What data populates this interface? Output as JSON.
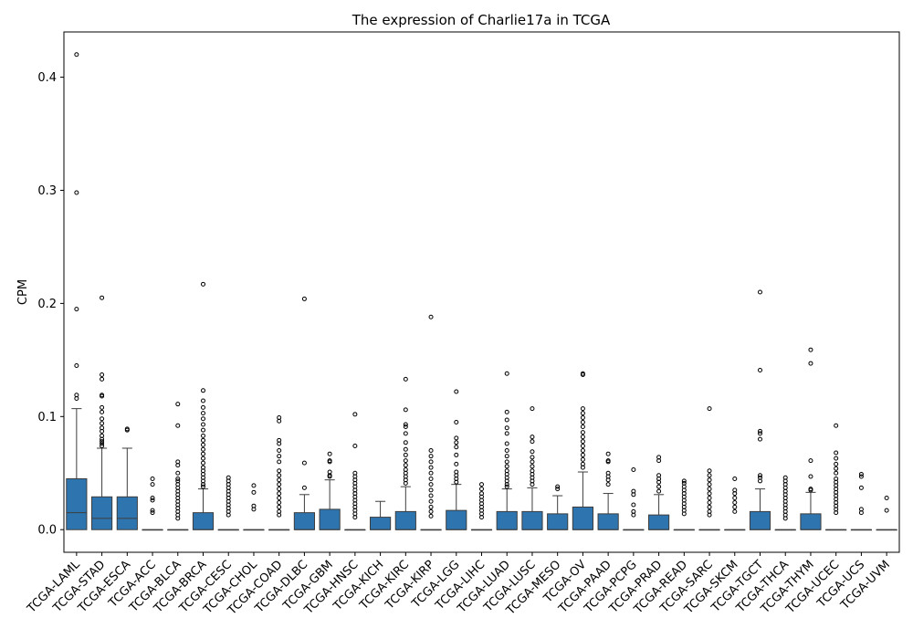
{
  "chart_data": {
    "type": "box",
    "title": "The expression of Charlie17a in TCGA",
    "xlabel": "",
    "ylabel": "CPM",
    "ylim": [
      -0.02,
      0.44
    ],
    "yticks": [
      0.0,
      0.1,
      0.2,
      0.3,
      0.4
    ],
    "ytick_labels": [
      "0.0",
      "0.1",
      "0.2",
      "0.3",
      "0.4"
    ],
    "grid": false,
    "box_color": "#2e75b0",
    "categories": [
      "TCGA-LAML",
      "TCGA-STAD",
      "TCGA-ESCA",
      "TCGA-ACC",
      "TCGA-BLCA",
      "TCGA-BRCA",
      "TCGA-CESC",
      "TCGA-CHOL",
      "TCGA-COAD",
      "TCGA-DLBC",
      "TCGA-GBM",
      "TCGA-HNSC",
      "TCGA-KICH",
      "TCGA-KIRC",
      "TCGA-KIRP",
      "TCGA-LGG",
      "TCGA-LIHC",
      "TCGA-LUAD",
      "TCGA-LUSC",
      "TCGA-MESO",
      "TCGA-OV",
      "TCGA-PAAD",
      "TCGA-PCPG",
      "TCGA-PRAD",
      "TCGA-READ",
      "TCGA-SARC",
      "TCGA-SKCM",
      "TCGA-TGCT",
      "TCGA-THCA",
      "TCGA-THYM",
      "TCGA-UCEC",
      "TCGA-UCS",
      "TCGA-UVM"
    ],
    "boxes": [
      {
        "q1": 0,
        "median": 0.015,
        "q3": 0.045,
        "whisker_low": 0,
        "whisker_high": 0.107,
        "outliers": [
          0.42,
          0.298,
          0.195,
          0.145,
          0.119,
          0.116
        ]
      },
      {
        "q1": 0,
        "median": 0.01,
        "q3": 0.029,
        "whisker_low": 0,
        "whisker_high": 0.072,
        "outliers": [
          0.205,
          0.137,
          0.133,
          0.119,
          0.118,
          0.108,
          0.104,
          0.098,
          0.094,
          0.09,
          0.087,
          0.083,
          0.08,
          0.078,
          0.076,
          0.074
        ]
      },
      {
        "q1": 0,
        "median": 0.01,
        "q3": 0.029,
        "whisker_low": 0,
        "whisker_high": 0.072,
        "outliers": [
          0.089,
          0.088
        ]
      },
      {
        "q1": 0,
        "median": 0,
        "q3": 0,
        "whisker_low": 0,
        "whisker_high": 0,
        "outliers": [
          0.045,
          0.04,
          0.028,
          0.026,
          0.017,
          0.015
        ]
      },
      {
        "q1": 0,
        "median": 0,
        "q3": 0,
        "whisker_low": 0,
        "whisker_high": 0,
        "outliers": [
          0.111,
          0.092,
          0.06,
          0.057,
          0.05,
          0.045,
          0.043,
          0.04,
          0.037,
          0.034,
          0.031,
          0.028,
          0.025,
          0.022,
          0.019,
          0.016,
          0.013,
          0.01
        ]
      },
      {
        "q1": 0,
        "median": 0,
        "q3": 0.015,
        "whisker_low": 0,
        "whisker_high": 0.036,
        "outliers": [
          0.217,
          0.123,
          0.114,
          0.108,
          0.103,
          0.098,
          0.093,
          0.088,
          0.083,
          0.079,
          0.075,
          0.071,
          0.067,
          0.063,
          0.059,
          0.055,
          0.052,
          0.049,
          0.046,
          0.043,
          0.04,
          0.038
        ]
      },
      {
        "q1": 0,
        "median": 0,
        "q3": 0,
        "whisker_low": 0,
        "whisker_high": 0,
        "outliers": [
          0.046,
          0.043,
          0.04,
          0.037,
          0.034,
          0.031,
          0.028,
          0.025,
          0.022,
          0.019,
          0.016,
          0.013
        ]
      },
      {
        "q1": 0,
        "median": 0,
        "q3": 0,
        "whisker_low": 0,
        "whisker_high": 0,
        "outliers": [
          0.039,
          0.033,
          0.021,
          0.018
        ]
      },
      {
        "q1": 0,
        "median": 0,
        "q3": 0,
        "whisker_low": 0,
        "whisker_high": 0,
        "outliers": [
          0.099,
          0.096,
          0.079,
          0.076,
          0.07,
          0.065,
          0.06,
          0.052,
          0.048,
          0.044,
          0.04,
          0.036,
          0.032,
          0.028,
          0.024,
          0.02,
          0.016,
          0.013
        ]
      },
      {
        "q1": 0,
        "median": 0,
        "q3": 0.015,
        "whisker_low": 0,
        "whisker_high": 0.031,
        "outliers": [
          0.204,
          0.059,
          0.037
        ]
      },
      {
        "q1": 0,
        "median": 0,
        "q3": 0.018,
        "whisker_low": 0,
        "whisker_high": 0.044,
        "outliers": [
          0.067,
          0.061,
          0.06,
          0.051,
          0.048,
          0.047
        ]
      },
      {
        "q1": 0,
        "median": 0,
        "q3": 0,
        "whisker_low": 0,
        "whisker_high": 0,
        "outliers": [
          0.102,
          0.074,
          0.05,
          0.047,
          0.044,
          0.041,
          0.038,
          0.035,
          0.032,
          0.029,
          0.026,
          0.023,
          0.02,
          0.017,
          0.014,
          0.011
        ]
      },
      {
        "q1": 0,
        "median": 0,
        "q3": 0.011,
        "whisker_low": 0,
        "whisker_high": 0.025,
        "outliers": []
      },
      {
        "q1": 0,
        "median": 0,
        "q3": 0.016,
        "whisker_low": 0,
        "whisker_high": 0.038,
        "outliers": [
          0.133,
          0.106,
          0.093,
          0.091,
          0.085,
          0.077,
          0.071,
          0.066,
          0.061,
          0.057,
          0.053,
          0.05,
          0.047,
          0.044,
          0.041
        ]
      },
      {
        "q1": 0,
        "median": 0,
        "q3": 0,
        "whisker_low": 0,
        "whisker_high": 0,
        "outliers": [
          0.188,
          0.07,
          0.065,
          0.06,
          0.055,
          0.05,
          0.045,
          0.04,
          0.035,
          0.03,
          0.025,
          0.02,
          0.016,
          0.012
        ]
      },
      {
        "q1": 0,
        "median": 0,
        "q3": 0.017,
        "whisker_low": 0,
        "whisker_high": 0.04,
        "outliers": [
          0.122,
          0.095,
          0.081,
          0.077,
          0.073,
          0.066,
          0.058,
          0.051,
          0.048,
          0.045,
          0.042
        ]
      },
      {
        "q1": 0,
        "median": 0,
        "q3": 0,
        "whisker_low": 0,
        "whisker_high": 0,
        "outliers": [
          0.04,
          0.036,
          0.032,
          0.029,
          0.026,
          0.023,
          0.02,
          0.017,
          0.014,
          0.011
        ]
      },
      {
        "q1": 0,
        "median": 0,
        "q3": 0.016,
        "whisker_low": 0,
        "whisker_high": 0.036,
        "outliers": [
          0.138,
          0.104,
          0.097,
          0.09,
          0.085,
          0.076,
          0.07,
          0.065,
          0.06,
          0.056,
          0.052,
          0.049,
          0.046,
          0.043,
          0.04,
          0.038
        ]
      },
      {
        "q1": 0,
        "median": 0,
        "q3": 0.016,
        "whisker_low": 0,
        "whisker_high": 0.037,
        "outliers": [
          0.107,
          0.082,
          0.078,
          0.069,
          0.064,
          0.06,
          0.056,
          0.052,
          0.049,
          0.046,
          0.043,
          0.04
        ]
      },
      {
        "q1": 0,
        "median": 0,
        "q3": 0.014,
        "whisker_low": 0,
        "whisker_high": 0.03,
        "outliers": [
          0.038,
          0.036
        ]
      },
      {
        "q1": 0,
        "median": 0,
        "q3": 0.02,
        "whisker_low": 0,
        "whisker_high": 0.051,
        "outliers": [
          0.138,
          0.137,
          0.107,
          0.103,
          0.099,
          0.095,
          0.091,
          0.086,
          0.082,
          0.078,
          0.074,
          0.07,
          0.066,
          0.062,
          0.058,
          0.055
        ]
      },
      {
        "q1": 0,
        "median": 0,
        "q3": 0.014,
        "whisker_low": 0,
        "whisker_high": 0.032,
        "outliers": [
          0.067,
          0.061,
          0.06,
          0.05,
          0.047,
          0.044,
          0.04
        ]
      },
      {
        "q1": 0,
        "median": 0,
        "q3": 0,
        "whisker_low": 0,
        "whisker_high": 0,
        "outliers": [
          0.053,
          0.034,
          0.031,
          0.022,
          0.016,
          0.013
        ]
      },
      {
        "q1": 0,
        "median": 0,
        "q3": 0.013,
        "whisker_low": 0,
        "whisker_high": 0.031,
        "outliers": [
          0.064,
          0.061,
          0.048,
          0.045,
          0.042,
          0.038,
          0.034
        ]
      },
      {
        "q1": 0,
        "median": 0,
        "q3": 0,
        "whisker_low": 0,
        "whisker_high": 0,
        "outliers": [
          0.043,
          0.041,
          0.038,
          0.035,
          0.032,
          0.029,
          0.026,
          0.023,
          0.02,
          0.017,
          0.014
        ]
      },
      {
        "q1": 0,
        "median": 0,
        "q3": 0,
        "whisker_low": 0,
        "whisker_high": 0,
        "outliers": [
          0.107,
          0.052,
          0.048,
          0.044,
          0.04,
          0.036,
          0.032,
          0.028,
          0.024,
          0.02,
          0.016,
          0.013
        ]
      },
      {
        "q1": 0,
        "median": 0,
        "q3": 0,
        "whisker_low": 0,
        "whisker_high": 0,
        "outliers": [
          0.045,
          0.035,
          0.032,
          0.028,
          0.024,
          0.02,
          0.016
        ]
      },
      {
        "q1": 0,
        "median": 0,
        "q3": 0.016,
        "whisker_low": 0,
        "whisker_high": 0.036,
        "outliers": [
          0.21,
          0.141,
          0.087,
          0.085,
          0.08,
          0.048,
          0.046,
          0.043
        ]
      },
      {
        "q1": 0,
        "median": 0,
        "q3": 0,
        "whisker_low": 0,
        "whisker_high": 0,
        "outliers": [
          0.046,
          0.043,
          0.04,
          0.037,
          0.034,
          0.031,
          0.028,
          0.025,
          0.022,
          0.019,
          0.016,
          0.013,
          0.01
        ]
      },
      {
        "q1": 0,
        "median": 0,
        "q3": 0.014,
        "whisker_low": 0,
        "whisker_high": 0.033,
        "outliers": [
          0.159,
          0.147,
          0.061,
          0.047,
          0.036,
          0.035
        ]
      },
      {
        "q1": 0,
        "median": 0,
        "q3": 0,
        "whisker_low": 0,
        "whisker_high": 0,
        "outliers": [
          0.092,
          0.068,
          0.063,
          0.058,
          0.054,
          0.05,
          0.045,
          0.042,
          0.039,
          0.036,
          0.033,
          0.03,
          0.027,
          0.024,
          0.021,
          0.018,
          0.015
        ]
      },
      {
        "q1": 0,
        "median": 0,
        "q3": 0,
        "whisker_low": 0,
        "whisker_high": 0,
        "outliers": [
          0.049,
          0.047,
          0.037,
          0.018,
          0.015
        ]
      },
      {
        "q1": 0,
        "median": 0,
        "q3": 0,
        "whisker_low": 0,
        "whisker_high": 0,
        "outliers": [
          0.028,
          0.017
        ]
      }
    ]
  }
}
